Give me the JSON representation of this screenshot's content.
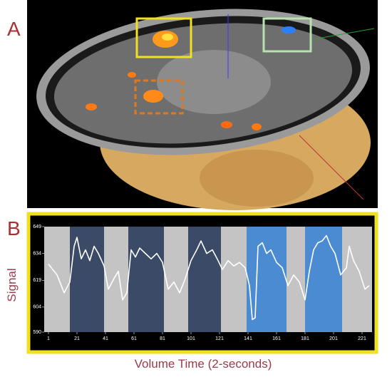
{
  "panel_labels": [
    "A",
    "B"
  ],
  "chart_data": {
    "type": "line",
    "ylabel": "Signal",
    "xlabel": "Volume Time (2-seconds)",
    "color": "#ffffff",
    "x": [
      1,
      7,
      12,
      16,
      19,
      21,
      24,
      27,
      30,
      33,
      36,
      40,
      43,
      47,
      50,
      53,
      56,
      59,
      62,
      65,
      69,
      73,
      77,
      81,
      85,
      89,
      93,
      97,
      101,
      105,
      108,
      112,
      116,
      120,
      123,
      127,
      131,
      135,
      139,
      142,
      144,
      146,
      148,
      151,
      154,
      157,
      161,
      165,
      169,
      173,
      177,
      181,
      184,
      187,
      190,
      193,
      196,
      199,
      202,
      206,
      210,
      212,
      215,
      219,
      223,
      226
    ],
    "values": [
      628,
      622,
      612,
      618,
      638,
      643,
      631,
      636,
      630,
      638,
      634,
      627,
      614,
      620,
      624,
      608,
      612,
      636,
      632,
      637,
      634,
      631,
      634,
      629,
      614,
      618,
      612,
      620,
      630,
      636,
      641,
      634,
      636,
      630,
      625,
      630,
      627,
      629,
      626,
      616,
      597,
      598,
      638,
      640,
      634,
      636,
      629,
      626,
      616,
      622,
      618,
      608,
      624,
      636,
      640,
      641,
      644,
      638,
      634,
      622,
      626,
      638,
      630,
      624,
      614,
      616
    ],
    "blocks": [
      {
        "start": -2,
        "end": 16,
        "color": "#c4c4c4"
      },
      {
        "start": 16,
        "end": 40,
        "color": "#3b4a66"
      },
      {
        "start": 40,
        "end": 57,
        "color": "#c4c4c4"
      },
      {
        "start": 57,
        "end": 82,
        "color": "#3b4a66"
      },
      {
        "start": 82,
        "end": 99,
        "color": "#c4c4c4"
      },
      {
        "start": 99,
        "end": 122,
        "color": "#3b4a66"
      },
      {
        "start": 122,
        "end": 140,
        "color": "#c4c4c4"
      },
      {
        "start": 140,
        "end": 168,
        "color": "#4a8bd2"
      },
      {
        "start": 168,
        "end": 181,
        "color": "#c4c4c4"
      },
      {
        "start": 181,
        "end": 207,
        "color": "#4a8bd2"
      },
      {
        "start": 207,
        "end": 228,
        "color": "#c4c4c4"
      }
    ],
    "xlim": [
      -2,
      228
    ],
    "xticks": [
      1,
      21,
      41,
      61,
      81,
      101,
      121,
      141,
      161,
      181,
      201,
      221
    ],
    "ylim": [
      590,
      649
    ],
    "yticks": [
      590,
      604,
      619,
      634,
      649
    ]
  }
}
